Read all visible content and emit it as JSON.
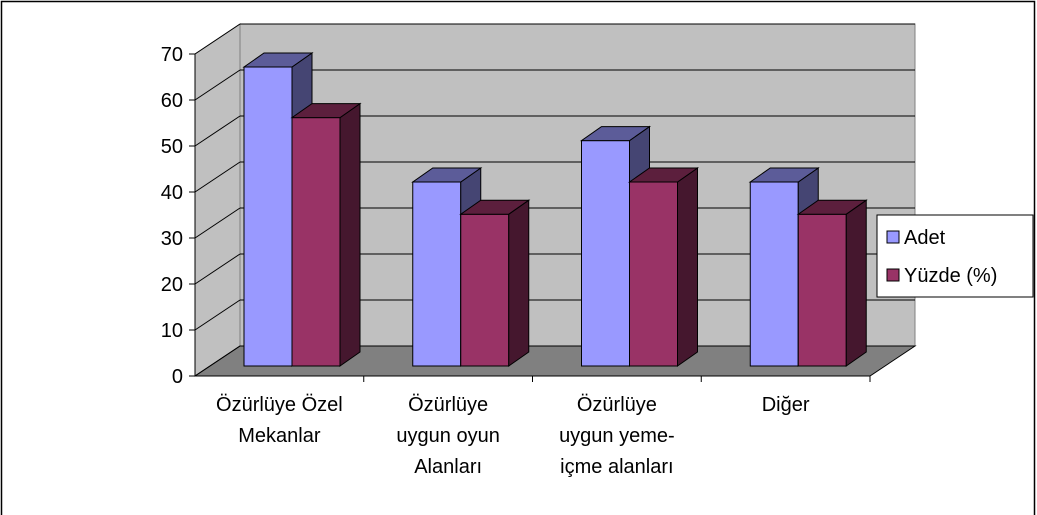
{
  "chart_data": {
    "type": "bar3d",
    "categories": [
      "Özürlüye Özel\nMekanlar",
      "Özürlüye\nuygun oyun\nAlanları",
      "Özürlüye\nuygun yeme-\niçme alanları",
      "Diğer"
    ],
    "series": [
      {
        "name": "Adet",
        "color": "#9999ff",
        "values": [
          65,
          40,
          49,
          40
        ]
      },
      {
        "name": "Yüzde (%)",
        "color": "#993366",
        "values": [
          54,
          33,
          40,
          33
        ]
      }
    ],
    "ylim": [
      0,
      70
    ],
    "yticks": [
      0,
      10,
      20,
      30,
      40,
      50,
      60,
      70
    ],
    "grid": true,
    "legend": "right"
  }
}
